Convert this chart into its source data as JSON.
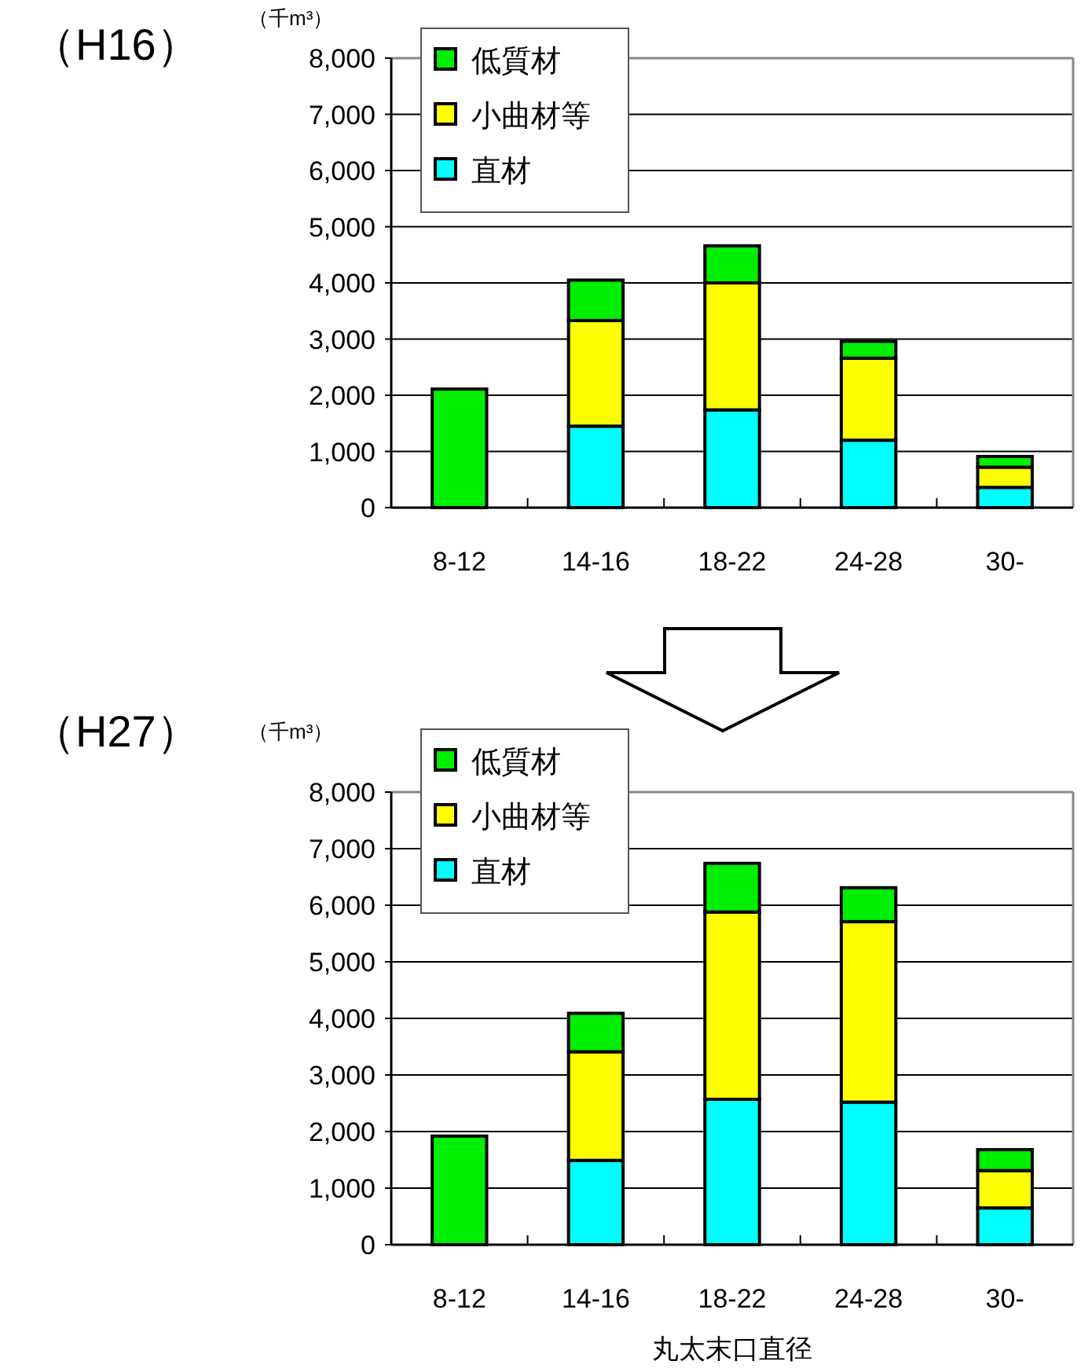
{
  "chart_data": [
    {
      "type": "bar",
      "title": "（H16）",
      "ylabel": "（千m³）",
      "stacked": true,
      "legend": "top left",
      "grid": "y",
      "categories": [
        "8-12",
        "14-16",
        "18-22",
        "24-28",
        "30-"
      ],
      "ylim": [
        0,
        8000
      ],
      "yticks": [
        0,
        {
          "value": 1000,
          "label": "1,000"
        },
        {
          "value": 2000,
          "label": "2,000"
        },
        {
          "value": 3000,
          "label": "3,000"
        },
        {
          "value": 4000,
          "label": "4,000"
        },
        {
          "value": 5000,
          "label": "5,000"
        },
        {
          "value": 6000,
          "label": "6,000"
        },
        {
          "value": 7000,
          "label": "7,000"
        },
        {
          "value": 8000,
          "label": "8,000"
        }
      ],
      "series": [
        {
          "name": "直材",
          "color": "#00ffff",
          "values": [
            0,
            1450,
            1740,
            1200,
            360
          ]
        },
        {
          "name": "小曲材等",
          "color": "#ffff00",
          "values": [
            0,
            1880,
            2260,
            1460,
            360
          ]
        },
        {
          "name": "低質材",
          "color": "#00ee00",
          "values": [
            2110,
            720,
            660,
            300,
            190
          ]
        }
      ]
    },
    {
      "type": "bar",
      "title": "（H27）",
      "ylabel": "（千m³）",
      "xlabel": "丸太末口直径",
      "stacked": true,
      "legend": "top left",
      "grid": "y",
      "categories": [
        "8-12",
        "14-16",
        "18-22",
        "24-28",
        "30-"
      ],
      "ylim": [
        0,
        8000
      ],
      "yticks": [
        0,
        {
          "value": 1000,
          "label": "1,000"
        },
        {
          "value": 2000,
          "label": "2,000"
        },
        {
          "value": 3000,
          "label": "3,000"
        },
        {
          "value": 4000,
          "label": "4,000"
        },
        {
          "value": 5000,
          "label": "5,000"
        },
        {
          "value": 6000,
          "label": "6,000"
        },
        {
          "value": 7000,
          "label": "7,000"
        },
        {
          "value": 8000,
          "label": "8,000"
        }
      ],
      "series": [
        {
          "name": "直材",
          "color": "#00ffff",
          "values": [
            0,
            1490,
            2570,
            2520,
            650
          ]
        },
        {
          "name": "小曲材等",
          "color": "#ffff00",
          "values": [
            0,
            1920,
            3310,
            3190,
            660
          ]
        },
        {
          "name": "低質材",
          "color": "#00ee00",
          "values": [
            1920,
            680,
            860,
            600,
            370
          ]
        }
      ]
    }
  ]
}
